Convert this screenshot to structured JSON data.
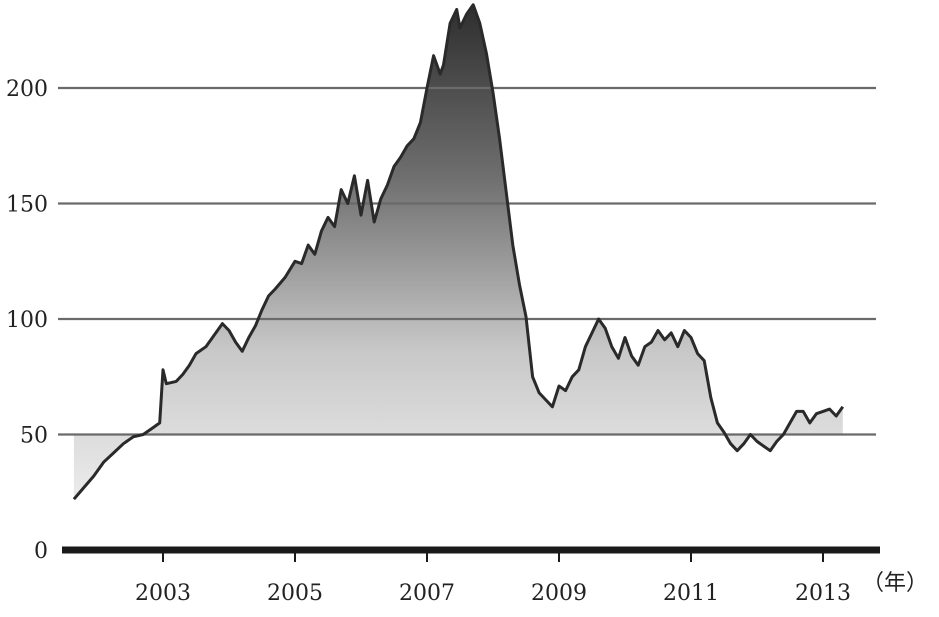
{
  "chart_data": {
    "type": "area",
    "x_unit_label": "（年）",
    "x_ticks": [
      2003,
      2005,
      2007,
      2009,
      2011,
      2013
    ],
    "y_ticks": [
      0,
      50,
      100,
      150,
      200
    ],
    "xlim": [
      2001.6,
      2014.0
    ],
    "ylim": [
      0,
      240
    ],
    "grid": true,
    "series": [
      {
        "x": [
          2001.65,
          2001.8,
          2001.95,
          2002.1,
          2002.25,
          2002.4,
          2002.55,
          2002.7,
          2002.85,
          2002.95,
          2003.0,
          2003.05,
          2003.2,
          2003.3,
          2003.4,
          2003.5,
          2003.65,
          2003.8,
          2003.9,
          2004.0,
          2004.1,
          2004.2,
          2004.3,
          2004.4,
          2004.5,
          2004.6,
          2004.7,
          2004.85,
          2005.0,
          2005.1,
          2005.2,
          2005.3,
          2005.4,
          2005.5,
          2005.6,
          2005.7,
          2005.8,
          2005.9,
          2006.0,
          2006.1,
          2006.2,
          2006.3,
          2006.4,
          2006.5,
          2006.6,
          2006.7,
          2006.8,
          2006.9,
          2007.0,
          2007.1,
          2007.2,
          2007.25,
          2007.35,
          2007.45,
          2007.5,
          2007.6,
          2007.7,
          2007.8,
          2007.9,
          2008.0,
          2008.1,
          2008.2,
          2008.3,
          2008.4,
          2008.5,
          2008.6,
          2008.7,
          2008.8,
          2008.9,
          2009.0,
          2009.1,
          2009.2,
          2009.3,
          2009.4,
          2009.5,
          2009.6,
          2009.7,
          2009.8,
          2009.9,
          2010.0,
          2010.1,
          2010.2,
          2010.3,
          2010.4,
          2010.5,
          2010.6,
          2010.7,
          2010.8,
          2010.9,
          2011.0,
          2011.1,
          2011.2,
          2011.3,
          2011.4,
          2011.5,
          2011.6,
          2011.7,
          2011.8,
          2011.9,
          2012.0,
          2012.1,
          2012.2,
          2012.3,
          2012.4,
          2012.5,
          2012.6,
          2012.7,
          2012.8,
          2012.9,
          2013.0,
          2013.1,
          2013.2,
          2013.3
        ],
        "values": [
          22,
          27,
          32,
          38,
          42,
          46,
          49,
          50,
          53,
          55,
          78,
          72,
          73,
          76,
          80,
          85,
          88,
          94,
          98,
          95,
          90,
          86,
          92,
          97,
          104,
          110,
          113,
          118,
          125,
          124,
          132,
          128,
          138,
          144,
          140,
          156,
          150,
          162,
          145,
          160,
          142,
          152,
          158,
          166,
          170,
          175,
          178,
          185,
          200,
          214,
          206,
          210,
          228,
          234,
          226,
          232,
          236,
          228,
          215,
          198,
          178,
          155,
          132,
          115,
          101,
          75,
          68,
          65,
          62,
          71,
          69,
          75,
          78,
          88,
          94,
          100,
          96,
          88,
          83,
          92,
          84,
          80,
          88,
          90,
          95,
          91,
          94,
          88,
          95,
          92,
          85,
          82,
          66,
          55,
          51,
          46,
          43,
          46,
          50,
          47,
          45,
          43,
          47,
          50,
          55,
          60,
          60,
          55,
          59,
          60,
          61,
          58,
          62
        ]
      }
    ]
  }
}
